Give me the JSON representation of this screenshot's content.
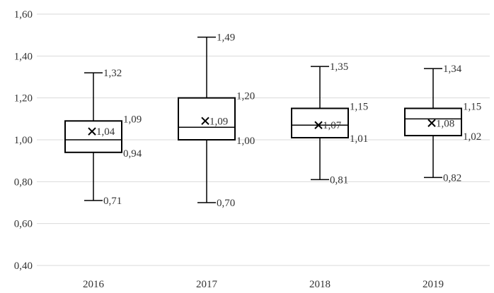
{
  "chart_data": {
    "type": "box",
    "title": "",
    "xlabel": "",
    "ylabel": "",
    "ylim": [
      0.4,
      1.6
    ],
    "yticks": [
      0.4,
      0.6,
      0.8,
      1.0,
      1.2,
      1.4,
      1.6
    ],
    "ytick_labels": [
      "0,40",
      "0,60",
      "0,80",
      "1,00",
      "1,20",
      "1,40",
      "1,60"
    ],
    "grid": true,
    "categories": [
      "2016",
      "2017",
      "2018",
      "2019"
    ],
    "boxes": [
      {
        "category": "2016",
        "min": 0.71,
        "q1": 0.94,
        "median": 1.0,
        "q3": 1.09,
        "max": 1.32,
        "mean": 1.04,
        "labels": {
          "min": "0,71",
          "q1": "0,94",
          "q3": "1,09",
          "max": "1,32",
          "mean": "1,04"
        }
      },
      {
        "category": "2017",
        "min": 0.7,
        "q1": 1.0,
        "median": 1.06,
        "q3": 1.2,
        "max": 1.49,
        "mean": 1.09,
        "labels": {
          "min": "0,70",
          "q1": "1,00",
          "q3": "1,20",
          "max": "1,49",
          "mean": "1,09"
        }
      },
      {
        "category": "2018",
        "min": 0.81,
        "q1": 1.01,
        "median": 1.07,
        "q3": 1.15,
        "max": 1.35,
        "mean": 1.07,
        "labels": {
          "min": "0,81",
          "q1": "1,01",
          "q3": "1,15",
          "max": "1,35",
          "mean": "1,07"
        }
      },
      {
        "category": "2019",
        "min": 0.82,
        "q1": 1.02,
        "median": 1.1,
        "q3": 1.15,
        "max": 1.34,
        "mean": 1.08,
        "labels": {
          "min": "0,82",
          "q1": "1,02",
          "q3": "1,15",
          "max": "1,34",
          "mean": "1,08"
        }
      }
    ],
    "colors": {
      "box_stroke": "#000000",
      "grid": "#d9d9d9",
      "text": "#333333"
    }
  }
}
